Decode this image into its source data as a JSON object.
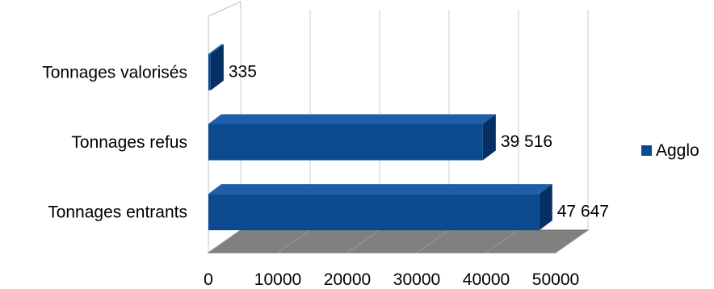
{
  "chart_data": {
    "type": "bar",
    "orientation": "horizontal",
    "style": "3d",
    "categories": [
      "Tonnages valorisés",
      "Tonnages refus",
      "Tonnages entrants"
    ],
    "series": [
      {
        "name": "Agglo",
        "values": [
          335,
          39516,
          47647
        ],
        "color": "#0b4a8f"
      }
    ],
    "data_labels": [
      "335",
      "39 516",
      "47 647"
    ],
    "xlim": [
      0,
      50000
    ],
    "ticks": [
      {
        "value": 0,
        "label": "0"
      },
      {
        "value": 10000,
        "label": "10000"
      },
      {
        "value": 20000,
        "label": "20000"
      },
      {
        "value": 30000,
        "label": "30000"
      },
      {
        "value": 40000,
        "label": "40000"
      },
      {
        "value": 50000,
        "label": "50000"
      }
    ],
    "title": "",
    "xlabel": "",
    "ylabel": "",
    "grid": true,
    "legend": {
      "position": "right",
      "entries": [
        "Agglo"
      ]
    },
    "colors": {
      "bar_front": "#0b4a8f",
      "bar_top": "#1e5fa8",
      "bar_side": "#062f63",
      "floor": "#808080",
      "grid": "#cccccc",
      "wall": "#bfbfbf"
    }
  }
}
